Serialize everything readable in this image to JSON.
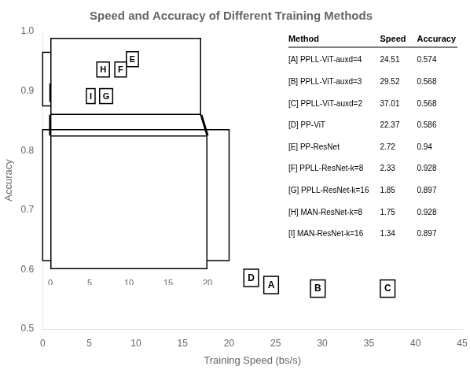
{
  "chart_data": [
    {
      "type": "scatter",
      "title": "Speed and Accuracy of Different Training Methods",
      "xlabel": "Training Speed (bs/s)",
      "ylabel": "Accuracy",
      "xlim": [
        0,
        45
      ],
      "ylim": [
        0.5,
        1.0
      ],
      "xticks": [
        0,
        5,
        10,
        15,
        20,
        25,
        30,
        35,
        40,
        45
      ],
      "yticks": [
        0.5,
        0.6,
        0.7,
        0.8,
        0.9,
        {
          "value": 1.0,
          "label": "1.0"
        }
      ],
      "grid": false,
      "labels": [
        "A",
        "B",
        "C",
        "D",
        "E",
        "F",
        "G",
        "H",
        "I"
      ],
      "x": [
        24.51,
        29.52,
        37.01,
        22.37,
        2.72,
        2.33,
        1.85,
        1.75,
        1.34
      ],
      "values": [
        0.574,
        0.568,
        0.568,
        0.586,
        0.94,
        0.928,
        0.897,
        0.928,
        0.897
      ],
      "table": {
        "columns": [
          "Method",
          "Speed",
          "Accuracy"
        ],
        "rows": [
          [
            "[A] PPLL-ViT-auxd=4",
            "24.51",
            "0.574"
          ],
          [
            "[B] PPLL-ViT-auxd=3",
            "29.52",
            "0.568"
          ],
          [
            "[C] PPLL-ViT-auxd=2",
            "37.01",
            "0.568"
          ],
          [
            "[D] PP-ViT",
            "22.37",
            "0.586"
          ],
          [
            "[E] PP-ResNet",
            "2.72",
            "0.94"
          ],
          [
            "[F] PPLL-ResNet-k=8",
            "2.33",
            "0.928"
          ],
          [
            "[G] PPLL-ResNet-k=16",
            "1.85",
            "0.897"
          ],
          [
            "[H] MAN-ResNet-k=8",
            "1.75",
            "0.928"
          ],
          [
            "[I] MAN-ResNet-k=16",
            "1.34",
            "0.897"
          ]
        ]
      }
    },
    {
      "type": "scatter",
      "xlim": [
        0,
        5
      ],
      "ylim": [
        0.875,
        0.965
      ],
      "tick_labels": false,
      "grid": false,
      "labels": [
        "E",
        "F",
        "G",
        "H",
        "I"
      ],
      "x": [
        2.72,
        2.33,
        1.85,
        1.75,
        1.34
      ],
      "values": [
        0.94,
        0.928,
        0.897,
        0.928,
        0.897
      ]
    },
    {
      "type": "scatter",
      "xlim": [
        0,
        20
      ],
      "ylim": [
        0.615,
        0.835
      ],
      "xticks": [
        0,
        5,
        10,
        15,
        20
      ],
      "tick_labels": "x",
      "grid": false,
      "labels": [],
      "x": [],
      "values": []
    }
  ]
}
